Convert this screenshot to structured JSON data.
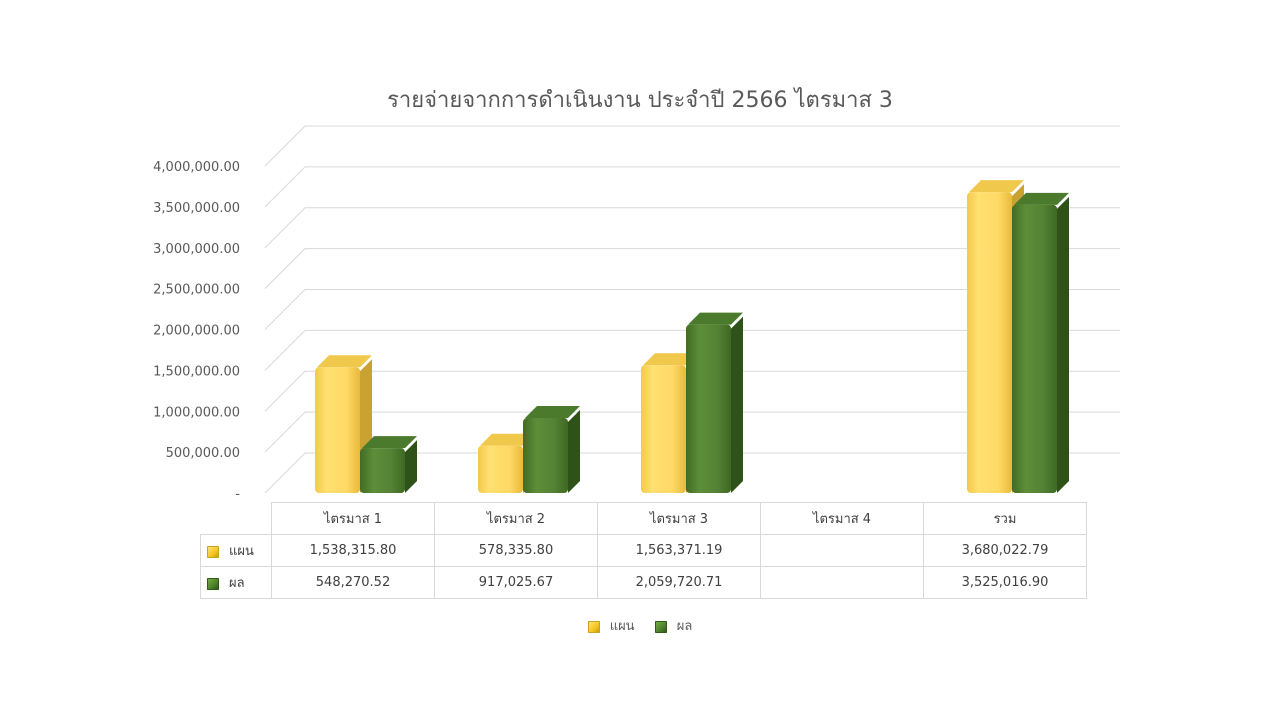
{
  "chart_data": {
    "type": "bar",
    "title": "รายจ่ายจากการดำเนินงาน ประจำปี 2566 ไตรมาส 3",
    "categories": [
      "ไตรมาส 1",
      "ไตรมาส 2",
      "ไตรมาส 3",
      "ไตรมาส 4",
      "รวม"
    ],
    "series": [
      {
        "name": "แผน",
        "color": "#ffd966",
        "values": [
          1538315.8,
          578335.8,
          1563371.19,
          null,
          3680022.79
        ],
        "labels": [
          "1,538,315.80",
          "578,335.80",
          "1,563,371.19",
          "",
          "3,680,022.79"
        ]
      },
      {
        "name": "ผล",
        "color": "#548235",
        "values": [
          548270.52,
          917025.67,
          2059720.71,
          null,
          3525016.9
        ],
        "labels": [
          "548,270.52",
          "917,025.67",
          "2,059,720.71",
          "",
          "3,525,016.90"
        ]
      }
    ],
    "y_ticks": [
      "-",
      "500,000.00",
      "1,000,000.00",
      "1,500,000.00",
      "2,000,000.00",
      "2,500,000.00",
      "3,000,000.00",
      "3,500,000.00",
      "4,000,000.00"
    ],
    "ylim": [
      0,
      4000000
    ],
    "grid": true,
    "legend_position": "bottom",
    "data_table": true
  }
}
